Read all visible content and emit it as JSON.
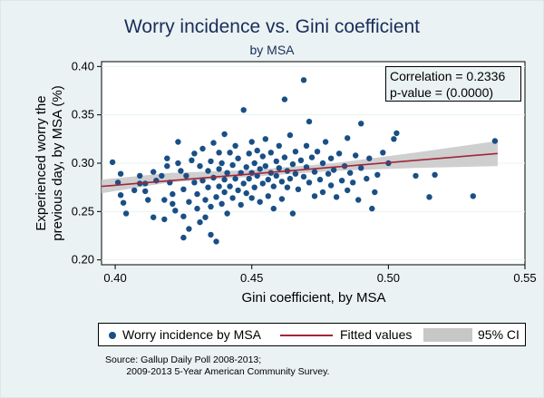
{
  "title": "Worry incidence vs. Gini coefficient",
  "subtitle": "by MSA",
  "stat_box": {
    "correlation": "Correlation = 0.2336",
    "p_value": "p-value = (0.0000)"
  },
  "legend": {
    "scatter": "Worry incidence by MSA",
    "fitted": "Fitted values",
    "ci": "95% CI"
  },
  "source": [
    "Source: Gallup Daily Poll 2008-2013;",
    "        2009-2013 5-Year American Community Survey."
  ],
  "colors": {
    "background": "#eaf2f3",
    "plot_area": "#ffffff",
    "markers": "#1a4f86",
    "fit_line": "#a0263a",
    "ci_band": "#c7c7c7",
    "title": "#1a2d5a"
  },
  "chart_data": {
    "type": "scatter",
    "title": "Worry incidence vs. Gini coefficient",
    "subtitle": "by MSA",
    "xlabel": "Gini coefficient, by MSA",
    "ylabel": "Experienced worry the previous day, by MSA (%)",
    "xlim": [
      0.395,
      0.55
    ],
    "ylim": [
      0.195,
      0.405
    ],
    "xticks": [
      "0.40",
      "0.45",
      "0.50",
      "0.55"
    ],
    "xtick_values": [
      0.4,
      0.45,
      0.5,
      0.55
    ],
    "yticks": [
      "0.20",
      "0.25",
      "0.30",
      "0.35",
      "0.40"
    ],
    "ytick_values": [
      0.2,
      0.25,
      0.3,
      0.35,
      0.4
    ],
    "grid": "horizontal",
    "fitted_line": {
      "name": "Fitted values",
      "x": [
        0.395,
        0.54
      ],
      "y": [
        0.276,
        0.31
      ]
    },
    "ci_band": {
      "name": "95% CI",
      "x": [
        0.395,
        0.42,
        0.45,
        0.48,
        0.51,
        0.54
      ],
      "lower": [
        0.269,
        0.28,
        0.286,
        0.292,
        0.295,
        0.297
      ],
      "upper": [
        0.283,
        0.29,
        0.293,
        0.3,
        0.311,
        0.323
      ]
    },
    "series": [
      {
        "name": "Worry incidence by MSA",
        "points": [
          [
            0.399,
            0.301
          ],
          [
            0.401,
            0.28
          ],
          [
            0.402,
            0.289
          ],
          [
            0.402,
            0.267
          ],
          [
            0.403,
            0.259
          ],
          [
            0.404,
            0.248
          ],
          [
            0.407,
            0.272
          ],
          [
            0.409,
            0.287
          ],
          [
            0.409,
            0.279
          ],
          [
            0.411,
            0.279
          ],
          [
            0.411,
            0.271
          ],
          [
            0.412,
            0.262
          ],
          [
            0.414,
            0.291
          ],
          [
            0.414,
            0.244
          ],
          [
            0.415,
            0.282
          ],
          [
            0.417,
            0.287
          ],
          [
            0.418,
            0.262
          ],
          [
            0.418,
            0.242
          ],
          [
            0.419,
            0.305
          ],
          [
            0.419,
            0.297
          ],
          [
            0.42,
            0.28
          ],
          [
            0.421,
            0.268
          ],
          [
            0.421,
            0.258
          ],
          [
            0.422,
            0.251
          ],
          [
            0.423,
            0.322
          ],
          [
            0.423,
            0.3
          ],
          [
            0.424,
            0.292
          ],
          [
            0.425,
            0.273
          ],
          [
            0.425,
            0.245
          ],
          [
            0.425,
            0.223
          ],
          [
            0.426,
            0.287
          ],
          [
            0.427,
            0.26
          ],
          [
            0.427,
            0.232
          ],
          [
            0.428,
            0.303
          ],
          [
            0.429,
            0.31
          ],
          [
            0.429,
            0.28
          ],
          [
            0.43,
            0.268
          ],
          [
            0.43,
            0.253
          ],
          [
            0.431,
            0.297
          ],
          [
            0.431,
            0.239
          ],
          [
            0.432,
            0.315
          ],
          [
            0.432,
            0.282
          ],
          [
            0.433,
            0.262
          ],
          [
            0.433,
            0.244
          ],
          [
            0.434,
            0.292
          ],
          [
            0.434,
            0.275
          ],
          [
            0.435,
            0.302
          ],
          [
            0.435,
            0.255
          ],
          [
            0.435,
            0.226
          ],
          [
            0.436,
            0.321
          ],
          [
            0.436,
            0.285
          ],
          [
            0.437,
            0.265
          ],
          [
            0.437,
            0.219
          ],
          [
            0.438,
            0.311
          ],
          [
            0.438,
            0.294
          ],
          [
            0.438,
            0.276
          ],
          [
            0.439,
            0.258
          ],
          [
            0.439,
            0.3
          ],
          [
            0.44,
            0.33
          ],
          [
            0.44,
            0.283
          ],
          [
            0.44,
            0.27
          ],
          [
            0.441,
            0.29
          ],
          [
            0.441,
            0.248
          ],
          [
            0.442,
            0.311
          ],
          [
            0.442,
            0.276
          ],
          [
            0.443,
            0.298
          ],
          [
            0.443,
            0.264
          ],
          [
            0.444,
            0.284
          ],
          [
            0.444,
            0.318
          ],
          [
            0.445,
            0.272
          ],
          [
            0.445,
            0.305
          ],
          [
            0.446,
            0.29
          ],
          [
            0.446,
            0.257
          ],
          [
            0.447,
            0.355
          ],
          [
            0.447,
            0.279
          ],
          [
            0.448,
            0.296
          ],
          [
            0.448,
            0.269
          ],
          [
            0.449,
            0.31
          ],
          [
            0.449,
            0.284
          ],
          [
            0.45,
            0.322
          ],
          [
            0.45,
            0.29
          ],
          [
            0.45,
            0.264
          ],
          [
            0.451,
            0.3
          ],
          [
            0.451,
            0.275
          ],
          [
            0.452,
            0.313
          ],
          [
            0.452,
            0.287
          ],
          [
            0.453,
            0.294
          ],
          [
            0.453,
            0.26
          ],
          [
            0.454,
            0.307
          ],
          [
            0.454,
            0.279
          ],
          [
            0.455,
            0.325
          ],
          [
            0.455,
            0.297
          ],
          [
            0.456,
            0.283
          ],
          [
            0.456,
            0.266
          ],
          [
            0.457,
            0.311
          ],
          [
            0.457,
            0.29
          ],
          [
            0.458,
            0.276
          ],
          [
            0.458,
            0.253
          ],
          [
            0.459,
            0.302
          ],
          [
            0.459,
            0.287
          ],
          [
            0.46,
            0.318
          ],
          [
            0.46,
            0.295
          ],
          [
            0.461,
            0.281
          ],
          [
            0.461,
            0.263
          ],
          [
            0.462,
            0.366
          ],
          [
            0.462,
            0.306
          ],
          [
            0.463,
            0.292
          ],
          [
            0.463,
            0.275
          ],
          [
            0.464,
            0.329
          ],
          [
            0.464,
            0.284
          ],
          [
            0.465,
            0.299
          ],
          [
            0.465,
            0.248
          ],
          [
            0.466,
            0.312
          ],
          [
            0.466,
            0.289
          ],
          [
            0.467,
            0.273
          ],
          [
            0.468,
            0.303
          ],
          [
            0.469,
            0.386
          ],
          [
            0.469,
            0.286
          ],
          [
            0.47,
            0.318
          ],
          [
            0.47,
            0.296
          ],
          [
            0.471,
            0.343
          ],
          [
            0.471,
            0.28
          ],
          [
            0.472,
            0.306
          ],
          [
            0.473,
            0.291
          ],
          [
            0.473,
            0.266
          ],
          [
            0.474,
            0.312
          ],
          [
            0.475,
            0.283
          ],
          [
            0.476,
            0.3
          ],
          [
            0.476,
            0.27
          ],
          [
            0.477,
            0.322
          ],
          [
            0.478,
            0.289
          ],
          [
            0.479,
            0.305
          ],
          [
            0.479,
            0.277
          ],
          [
            0.48,
            0.293
          ],
          [
            0.481,
            0.265
          ],
          [
            0.482,
            0.31
          ],
          [
            0.483,
            0.282
          ],
          [
            0.484,
            0.297
          ],
          [
            0.485,
            0.326
          ],
          [
            0.485,
            0.272
          ],
          [
            0.486,
            0.29
          ],
          [
            0.487,
            0.28
          ],
          [
            0.488,
            0.308
          ],
          [
            0.489,
            0.262
          ],
          [
            0.49,
            0.341
          ],
          [
            0.49,
            0.295
          ],
          [
            0.492,
            0.284
          ],
          [
            0.493,
            0.305
          ],
          [
            0.494,
            0.253
          ],
          [
            0.495,
            0.27
          ],
          [
            0.496,
            0.288
          ],
          [
            0.498,
            0.311
          ],
          [
            0.5,
            0.3
          ],
          [
            0.502,
            0.325
          ],
          [
            0.503,
            0.331
          ],
          [
            0.51,
            0.287
          ],
          [
            0.515,
            0.265
          ],
          [
            0.517,
            0.288
          ],
          [
            0.531,
            0.266
          ],
          [
            0.539,
            0.323
          ]
        ]
      }
    ]
  }
}
